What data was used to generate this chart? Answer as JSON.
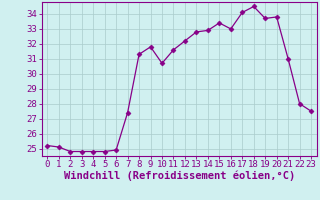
{
  "hours": [
    0,
    1,
    2,
    3,
    4,
    5,
    6,
    7,
    8,
    9,
    10,
    11,
    12,
    13,
    14,
    15,
    16,
    17,
    18,
    19,
    20,
    21,
    22,
    23
  ],
  "values": [
    25.2,
    25.1,
    24.8,
    24.8,
    24.8,
    24.8,
    24.9,
    27.4,
    31.3,
    31.8,
    30.7,
    31.6,
    32.2,
    32.8,
    32.9,
    33.4,
    33.0,
    34.1,
    34.5,
    33.7,
    33.8,
    31.0,
    28.0,
    27.5
  ],
  "line_color": "#880088",
  "marker": "D",
  "marker_size": 2.5,
  "bg_color": "#d0f0f0",
  "grid_color": "#aacccc",
  "xlabel": "Windchill (Refroidissement éolien,°C)",
  "xlabel_color": "#880088",
  "xlabel_fontsize": 7.5,
  "ylabel_ticks": [
    25,
    26,
    27,
    28,
    29,
    30,
    31,
    32,
    33,
    34
  ],
  "xlim": [
    -0.5,
    23.5
  ],
  "ylim": [
    24.5,
    34.8
  ],
  "tick_fontsize": 6.5,
  "tick_color": "#880088",
  "spine_color": "#880088",
  "figure_bg": "#d0f0f0"
}
